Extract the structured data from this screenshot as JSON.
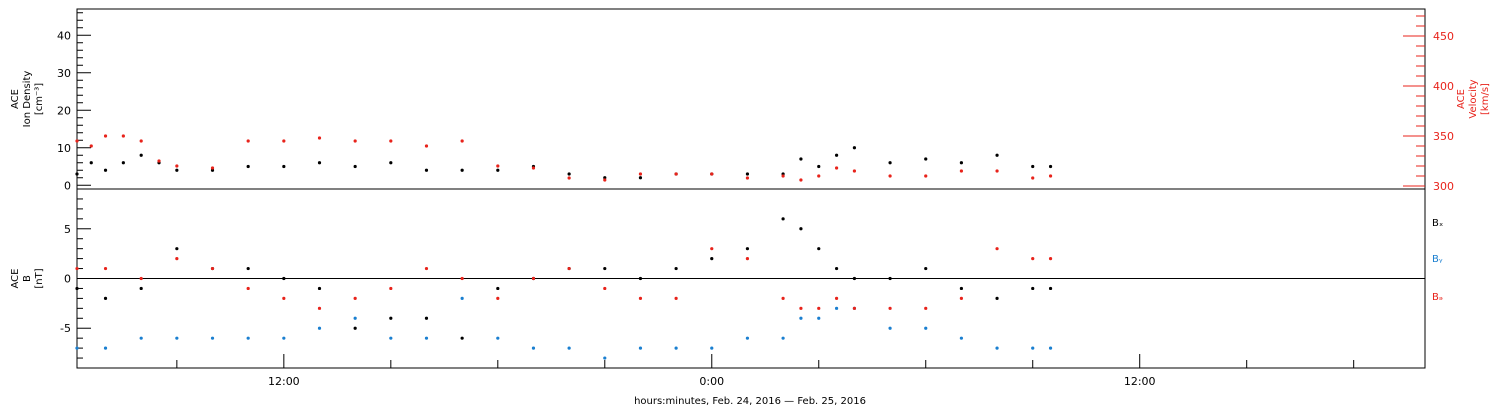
{
  "colors": {
    "axis": "#000000",
    "density": "#000000",
    "velocity": "#e8231b",
    "bx": "#000000",
    "by": "#1a7fd0",
    "bz": "#e8231b"
  },
  "footer_label": "hours:minutes, Feb. 24, 2016 — Feb. 25, 2016",
  "chart_data": [
    {
      "type": "scatter",
      "panel": "top",
      "ylabel": [
        "ACE",
        "Ion Density",
        "[cm⁻³]"
      ],
      "y2label": [
        "ACE",
        "Velocity",
        "[km/s]"
      ],
      "ylim": [
        -1,
        47
      ],
      "y2lim": [
        297,
        477
      ],
      "yticks": [
        0,
        10,
        20,
        30,
        40
      ],
      "y2ticks": [
        300,
        350,
        400,
        450
      ],
      "x_hours_range": [
        6.2,
        44
      ],
      "xtick_labels": [
        "12:00",
        "0:00",
        "12:00"
      ],
      "xtick_hours": [
        12,
        24,
        36
      ],
      "series": [
        {
          "y_axis": "left",
          "x_hours": [
            6.2,
            6.6,
            7,
            7.5,
            8,
            8.5,
            9,
            10,
            11,
            12,
            13,
            14,
            15,
            16,
            17,
            18,
            19,
            20,
            21,
            22,
            23,
            24,
            25,
            26,
            26.5,
            27,
            27.5,
            28,
            29,
            30,
            31,
            32,
            33,
            33.5
          ],
          "values": [
            3,
            6,
            4,
            6,
            8,
            6,
            4,
            4,
            5,
            5,
            6,
            5,
            6,
            4,
            4,
            4,
            5,
            3,
            2,
            2,
            3,
            3,
            3,
            3,
            7,
            5,
            8,
            10,
            6,
            7,
            6,
            8,
            5,
            5
          ]
        },
        {
          "y_axis": "right",
          "x_hours": [
            6.2,
            6.6,
            7,
            7.5,
            8,
            8.5,
            9,
            10,
            11,
            12,
            13,
            14,
            15,
            16,
            17,
            18,
            19,
            20,
            21,
            22,
            23,
            24,
            25,
            26,
            26.5,
            27,
            27.5,
            28,
            29,
            30,
            31,
            32,
            33,
            33.5
          ],
          "values": [
            345,
            340,
            350,
            350,
            345,
            325,
            320,
            318,
            345,
            345,
            348,
            345,
            345,
            340,
            345,
            320,
            318,
            308,
            306,
            312,
            312,
            312,
            308,
            310,
            306,
            310,
            318,
            315,
            310,
            310,
            315,
            315,
            308,
            310
          ]
        }
      ]
    },
    {
      "type": "scatter",
      "panel": "bottom",
      "ylabel": [
        "ACE",
        "B",
        "[nT]"
      ],
      "ylim": [
        -9,
        9
      ],
      "yticks": [
        -5,
        0,
        5
      ],
      "series": [
        {
          "name": "Bₓ",
          "x_hours": [
            6.2,
            7,
            8,
            9,
            10,
            11,
            12,
            13,
            14,
            15,
            16,
            17,
            18,
            19,
            20,
            21,
            22,
            23,
            24,
            25,
            26,
            26.5,
            27,
            27.5,
            28,
            29,
            30,
            31,
            32,
            33,
            33.5
          ],
          "values": [
            -1,
            -2,
            -1,
            3,
            1,
            1,
            0,
            -1,
            -5,
            -4,
            -4,
            -6,
            -1,
            0,
            1,
            1,
            0,
            1,
            2,
            3,
            6,
            5,
            3,
            1,
            0,
            0,
            1,
            -1,
            -2,
            -1,
            -1
          ]
        },
        {
          "name": "Bᵧ",
          "x_hours": [
            6.2,
            7,
            8,
            9,
            10,
            11,
            12,
            13,
            14,
            15,
            16,
            17,
            18,
            19,
            20,
            21,
            22,
            23,
            24,
            25,
            26,
            26.5,
            27,
            27.5,
            28,
            29,
            30,
            31,
            32,
            33,
            33.5
          ],
          "values": [
            -7,
            -7,
            -6,
            -6,
            -6,
            -6,
            -6,
            -5,
            -4,
            -6,
            -6,
            -2,
            -6,
            -7,
            -7,
            -8,
            -7,
            -7,
            -7,
            -6,
            -6,
            -4,
            -4,
            -3,
            -3,
            -5,
            -5,
            -6,
            -7,
            -7,
            -7
          ]
        },
        {
          "name": "Bₔ",
          "x_hours": [
            6.2,
            7,
            8,
            9,
            10,
            11,
            12,
            13,
            14,
            15,
            16,
            17,
            18,
            19,
            20,
            21,
            22,
            23,
            24,
            25,
            26,
            26.5,
            27,
            27.5,
            28,
            29,
            30,
            31,
            32,
            33,
            33.5
          ],
          "values": [
            1,
            1,
            0,
            2,
            1,
            -1,
            -2,
            -3,
            -2,
            -1,
            1,
            0,
            -2,
            0,
            1,
            -1,
            -2,
            -2,
            3,
            2,
            -2,
            -3,
            -3,
            -2,
            -3,
            -3,
            -3,
            -2,
            3,
            2,
            2
          ]
        }
      ]
    }
  ]
}
